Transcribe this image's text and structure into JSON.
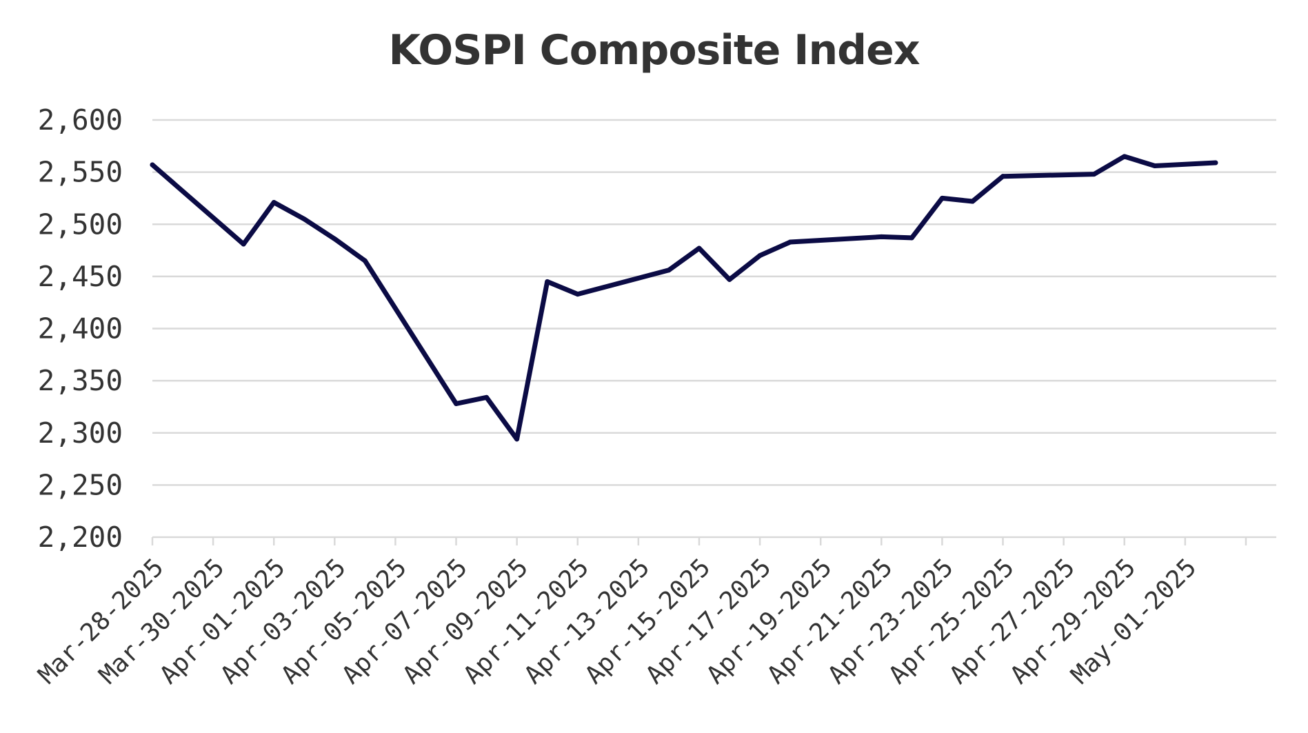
{
  "chart_data": {
    "type": "line",
    "title": "KOSPI Composite Index",
    "xlabel": "",
    "ylabel": "",
    "x_tick_labels": [
      "Mar-28-2025",
      "Mar-30-2025",
      "Apr-01-2025",
      "Apr-03-2025",
      "Apr-05-2025",
      "Apr-07-2025",
      "Apr-09-2025",
      "Apr-11-2025",
      "Apr-13-2025",
      "Apr-15-2025",
      "Apr-17-2025",
      "Apr-19-2025",
      "Apr-21-2025",
      "Apr-23-2025",
      "Apr-25-2025",
      "Apr-27-2025",
      "Apr-29-2025",
      "May-01-2025"
    ],
    "y_tick_labels": [
      "2,200",
      "2,250",
      "2,300",
      "2,350",
      "2,400",
      "2,450",
      "2,500",
      "2,550",
      "2,600"
    ],
    "ylim": [
      2200,
      2600
    ],
    "xlim": [
      "2025-03-28",
      "2025-05-04"
    ],
    "grid": "horizontal",
    "legend": "none",
    "colors": {
      "line": "#0b0b45",
      "grid": "#d9d9d9",
      "text": "#333333"
    },
    "series": [
      {
        "points": [
          {
            "x": "2025-03-28",
            "y": 2557
          },
          {
            "x": "2025-03-31",
            "y": 2481
          },
          {
            "x": "2025-04-01",
            "y": 2521
          },
          {
            "x": "2025-04-02",
            "y": 2505
          },
          {
            "x": "2025-04-03",
            "y": 2486
          },
          {
            "x": "2025-04-04",
            "y": 2465
          },
          {
            "x": "2025-04-07",
            "y": 2328
          },
          {
            "x": "2025-04-08",
            "y": 2334
          },
          {
            "x": "2025-04-09",
            "y": 2294
          },
          {
            "x": "2025-04-10",
            "y": 2445
          },
          {
            "x": "2025-04-11",
            "y": 2433
          },
          {
            "x": "2025-04-14",
            "y": 2456
          },
          {
            "x": "2025-04-15",
            "y": 2477
          },
          {
            "x": "2025-04-16",
            "y": 2447
          },
          {
            "x": "2025-04-17",
            "y": 2470
          },
          {
            "x": "2025-04-18",
            "y": 2483
          },
          {
            "x": "2025-04-21",
            "y": 2488
          },
          {
            "x": "2025-04-22",
            "y": 2487
          },
          {
            "x": "2025-04-23",
            "y": 2525
          },
          {
            "x": "2025-04-24",
            "y": 2522
          },
          {
            "x": "2025-04-25",
            "y": 2546
          },
          {
            "x": "2025-04-28",
            "y": 2548
          },
          {
            "x": "2025-04-29",
            "y": 2565
          },
          {
            "x": "2025-04-30",
            "y": 2556
          },
          {
            "x": "2025-05-02",
            "y": 2559
          }
        ]
      }
    ]
  }
}
